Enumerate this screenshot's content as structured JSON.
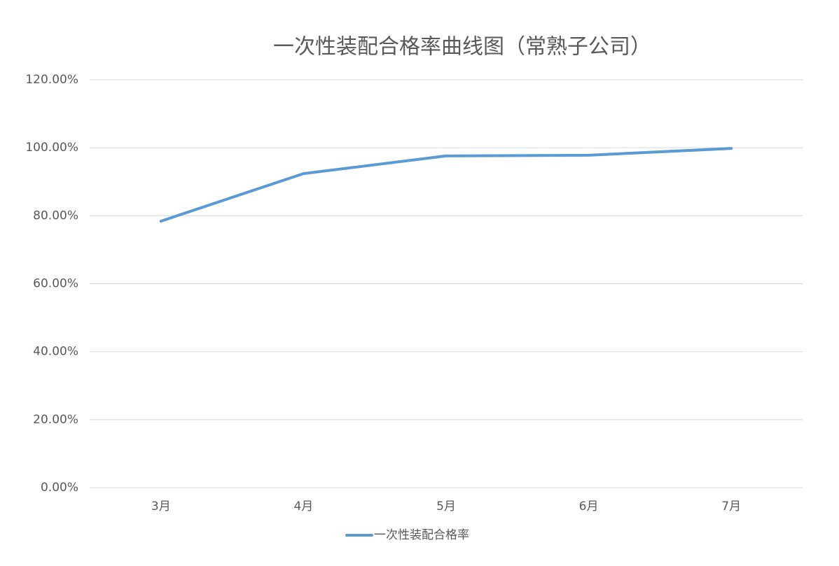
{
  "chart_data": {
    "type": "line",
    "title": "一次性装配合格率曲线图（常熟子公司）",
    "categories": [
      "3月",
      "4月",
      "5月",
      "6月",
      "7月"
    ],
    "series": [
      {
        "name": "一次性装配合格率",
        "color": "#5b9bd5",
        "values": [
          78.4,
          92.4,
          97.6,
          97.8,
          99.8
        ]
      }
    ],
    "ylim": [
      0,
      120
    ],
    "yticks": [
      {
        "value": 0,
        "label": "0.00%"
      },
      {
        "value": 20,
        "label": "20.00%"
      },
      {
        "value": 40,
        "label": "40.00%"
      },
      {
        "value": 60,
        "label": "60.00%"
      },
      {
        "value": 80,
        "label": "80.00%"
      },
      {
        "value": 100,
        "label": "100.00%"
      },
      {
        "value": 120,
        "label": "120.00%"
      }
    ],
    "grid": true,
    "legend": "bottom"
  }
}
